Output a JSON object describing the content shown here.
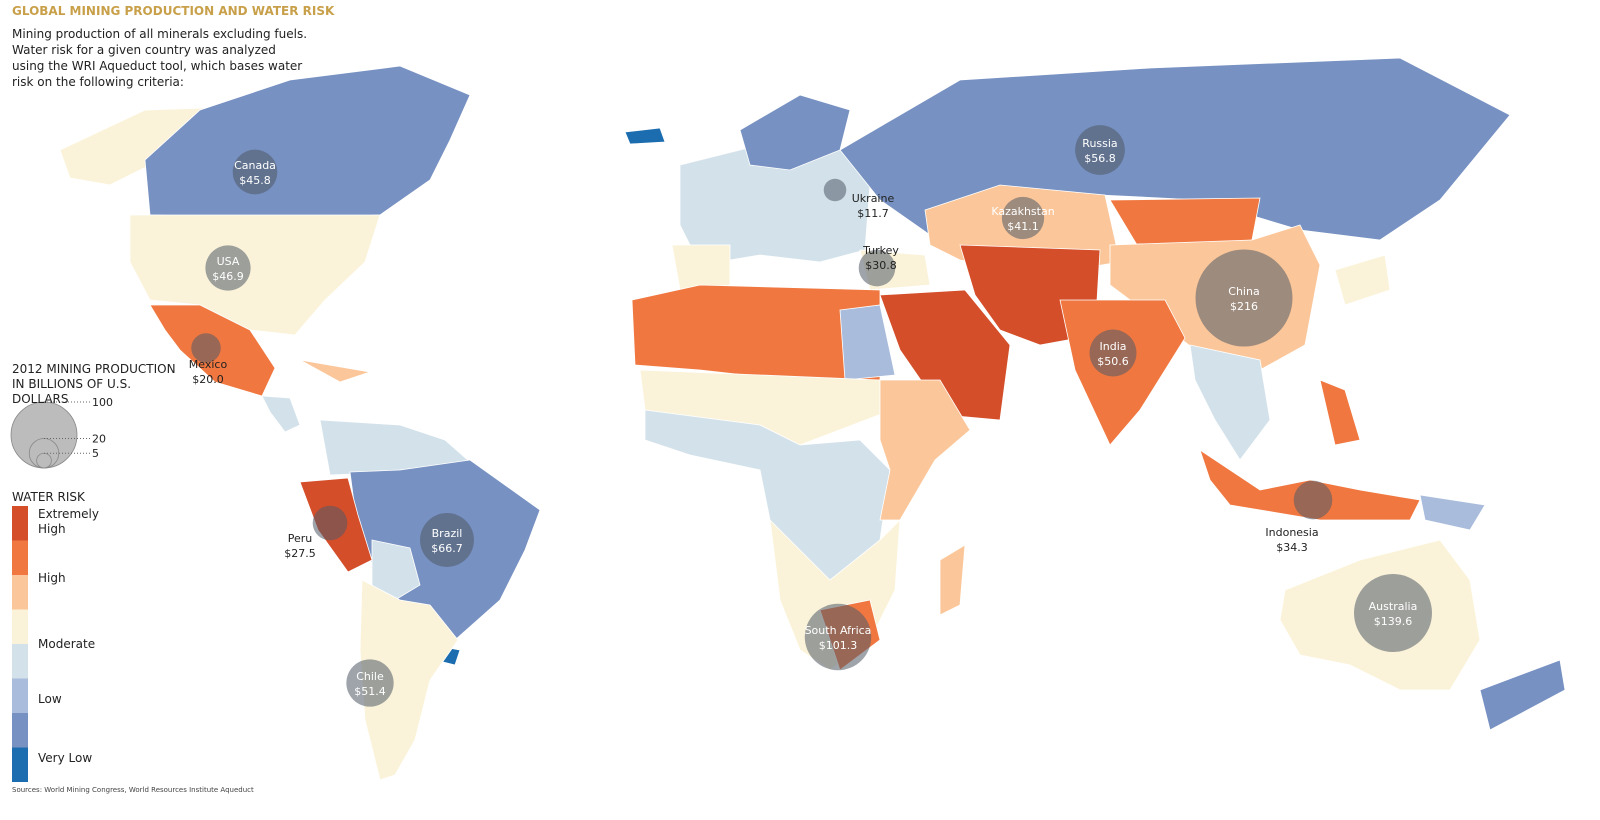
{
  "title": "GLOBAL MINING PRODUCTION AND WATER RISK",
  "description": "Mining production of all minerals excluding fuels. Water risk for a given country was analyzed using the WRI Aqueduct tool, which bases water risk on the following criteria:",
  "size_legend": {
    "title": "2012 MINING PRODUCTION IN BILLIONS OF U.S. DOLLARS",
    "values": [
      100,
      20,
      5
    ]
  },
  "water_risk": {
    "title": "WATER RISK",
    "colors": [
      "#d44e2a",
      "#f07840",
      "#fbc79a",
      "#fbf3d9",
      "#d3e2ea",
      "#a9bcdc",
      "#7791c2",
      "#1c6daf"
    ],
    "labels": [
      "Extremely High",
      "High",
      "Moderate",
      "Low",
      "Very Low"
    ]
  },
  "countries": [
    {
      "name": "Canada",
      "value": 45.8,
      "value_label": "$45.8"
    },
    {
      "name": "USA",
      "value": 46.9,
      "value_label": "$46.9"
    },
    {
      "name": "Mexico",
      "value": 20.0,
      "value_label": "$20.0"
    },
    {
      "name": "Peru",
      "value": 27.5,
      "value_label": "$27.5"
    },
    {
      "name": "Brazil",
      "value": 66.7,
      "value_label": "$66.7"
    },
    {
      "name": "Chile",
      "value": 51.4,
      "value_label": "$51.4"
    },
    {
      "name": "Russia",
      "value": 56.8,
      "value_label": "$56.8"
    },
    {
      "name": "Kazakhstan",
      "value": 41.1,
      "value_label": "$41.1"
    },
    {
      "name": "Ukraine",
      "value": 11.7,
      "value_label": "$11.7"
    },
    {
      "name": "Turkey",
      "value": 30.8,
      "value_label": "$30.8"
    },
    {
      "name": "China",
      "value": 216,
      "value_label": "$216"
    },
    {
      "name": "India",
      "value": 50.6,
      "value_label": "$50.6"
    },
    {
      "name": "Indonesia",
      "value": 34.3,
      "value_label": "$34.3"
    },
    {
      "name": "Australia",
      "value": 139.6,
      "value_label": "$139.6"
    },
    {
      "name": "South Africa",
      "value": 101.3,
      "value_label": "$101.3"
    }
  ],
  "source": "Sources: World Mining Congress, World Resources Institute Aqueduct"
}
